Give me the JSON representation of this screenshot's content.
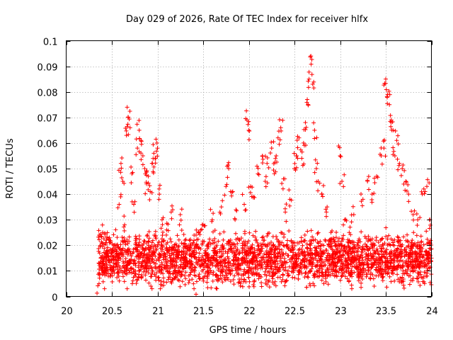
{
  "chart_data": {
    "type": "scatter",
    "title": "Day 029 of 2026, Rate Of TEC Index for receiver hlfx",
    "xlabel": "GPS time / hours",
    "ylabel": "ROTI / TECUs",
    "xlim": [
      20,
      24
    ],
    "ylim": [
      0,
      0.1
    ],
    "xticks": [
      20,
      20.5,
      21,
      21.5,
      22,
      22.5,
      23,
      23.5,
      24
    ],
    "xtick_labels": [
      "20",
      "20.5",
      "21",
      "21.5",
      "22",
      "22.5",
      "23",
      "23.5",
      "24"
    ],
    "yticks": [
      0,
      0.01,
      0.02,
      0.03,
      0.04,
      0.05,
      0.06,
      0.07,
      0.08,
      0.09,
      0.1
    ],
    "ytick_labels": [
      "0",
      "0.01",
      "0.02",
      "0.03",
      "0.04",
      "0.05",
      "0.06",
      "0.07",
      "0.08",
      "0.09",
      "0.1"
    ],
    "grid": true,
    "marker": "+",
    "marker_color": "#ff0000",
    "series": [
      {
        "name": "ROTI",
        "x_range": [
          20.35,
          24.0
        ],
        "points": [
          [
            20.36,
            0.005
          ],
          [
            20.38,
            0.015
          ],
          [
            20.4,
            0.025
          ],
          [
            20.42,
            0.012
          ],
          [
            20.45,
            0.018
          ],
          [
            20.48,
            0.008
          ],
          [
            20.52,
            0.02
          ],
          [
            20.55,
            0.014
          ],
          [
            20.58,
            0.036
          ],
          [
            20.6,
            0.052
          ],
          [
            20.62,
            0.045
          ],
          [
            20.64,
            0.028
          ],
          [
            20.66,
            0.063
          ],
          [
            20.68,
            0.07
          ],
          [
            20.7,
            0.066
          ],
          [
            20.72,
            0.048
          ],
          [
            20.74,
            0.036
          ],
          [
            20.76,
            0.022
          ],
          [
            20.78,
            0.058
          ],
          [
            20.8,
            0.065
          ],
          [
            20.82,
            0.061
          ],
          [
            20.84,
            0.055
          ],
          [
            20.86,
            0.05
          ],
          [
            20.88,
            0.044
          ],
          [
            20.9,
            0.047
          ],
          [
            20.92,
            0.041
          ],
          [
            20.94,
            0.052
          ],
          [
            20.96,
            0.056
          ],
          [
            20.98,
            0.054
          ],
          [
            21.0,
            0.058
          ],
          [
            21.02,
            0.04
          ],
          [
            21.05,
            0.03
          ],
          [
            21.1,
            0.026
          ],
          [
            21.15,
            0.033
          ],
          [
            21.2,
            0.018
          ],
          [
            21.25,
            0.032
          ],
          [
            21.3,
            0.022
          ],
          [
            21.35,
            0.014
          ],
          [
            21.4,
            0.003
          ],
          [
            21.45,
            0.025
          ],
          [
            21.5,
            0.028
          ],
          [
            21.55,
            0.012
          ],
          [
            21.6,
            0.03
          ],
          [
            21.65,
            0.02
          ],
          [
            21.7,
            0.035
          ],
          [
            21.75,
            0.043
          ],
          [
            21.78,
            0.05
          ],
          [
            21.8,
            0.041
          ],
          [
            21.85,
            0.03
          ],
          [
            21.9,
            0.022
          ],
          [
            21.95,
            0.036
          ],
          [
            21.98,
            0.069
          ],
          [
            22.0,
            0.065
          ],
          [
            22.02,
            0.043
          ],
          [
            22.05,
            0.039
          ],
          [
            22.1,
            0.048
          ],
          [
            22.15,
            0.055
          ],
          [
            22.18,
            0.045
          ],
          [
            22.2,
            0.052
          ],
          [
            22.25,
            0.058
          ],
          [
            22.28,
            0.048
          ],
          [
            22.3,
            0.055
          ],
          [
            22.32,
            0.062
          ],
          [
            22.35,
            0.066
          ],
          [
            22.38,
            0.046
          ],
          [
            22.4,
            0.033
          ],
          [
            22.45,
            0.038
          ],
          [
            22.5,
            0.05
          ],
          [
            22.52,
            0.055
          ],
          [
            22.55,
            0.062
          ],
          [
            22.58,
            0.054
          ],
          [
            22.6,
            0.06
          ],
          [
            22.62,
            0.068
          ],
          [
            22.64,
            0.077
          ],
          [
            22.66,
            0.085
          ],
          [
            22.68,
            0.094
          ],
          [
            22.7,
            0.083
          ],
          [
            22.72,
            0.065
          ],
          [
            22.74,
            0.05
          ],
          [
            22.76,
            0.045
          ],
          [
            22.8,
            0.04
          ],
          [
            22.85,
            0.033
          ],
          [
            22.9,
            0.025
          ],
          [
            22.95,
            0.02
          ],
          [
            23.0,
            0.055
          ],
          [
            23.02,
            0.045
          ],
          [
            23.05,
            0.03
          ],
          [
            23.1,
            0.025
          ],
          [
            23.15,
            0.032
          ],
          [
            23.2,
            0.02
          ],
          [
            23.25,
            0.038
          ],
          [
            23.3,
            0.045
          ],
          [
            23.35,
            0.04
          ],
          [
            23.4,
            0.047
          ],
          [
            23.45,
            0.055
          ],
          [
            23.48,
            0.058
          ],
          [
            23.5,
            0.085
          ],
          [
            23.52,
            0.079
          ],
          [
            23.54,
            0.075
          ],
          [
            23.56,
            0.069
          ],
          [
            23.58,
            0.065
          ],
          [
            23.6,
            0.055
          ],
          [
            23.62,
            0.061
          ],
          [
            23.65,
            0.052
          ],
          [
            23.68,
            0.05
          ],
          [
            23.72,
            0.045
          ],
          [
            23.75,
            0.04
          ],
          [
            23.8,
            0.032
          ],
          [
            23.85,
            0.03
          ],
          [
            23.9,
            0.04
          ],
          [
            23.95,
            0.043
          ],
          [
            23.98,
            0.03
          ],
          [
            24.0,
            0.015
          ]
        ],
        "baseline_band": [
          0.003,
          0.03
        ]
      }
    ]
  }
}
